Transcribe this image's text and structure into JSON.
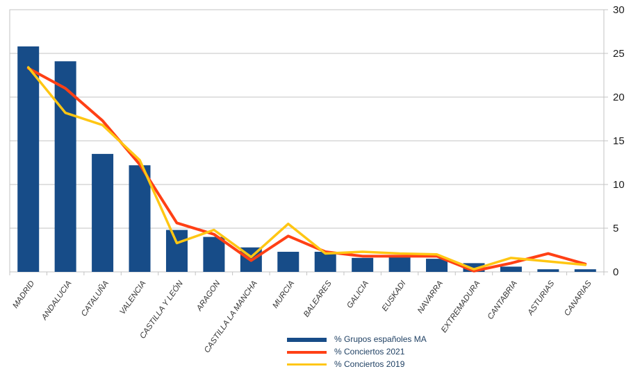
{
  "chart_data": {
    "type": "bar",
    "title": "",
    "xlabel": "",
    "ylabel": "",
    "ylim": [
      0,
      30
    ],
    "yticks": [
      0,
      5,
      10,
      15,
      20,
      25,
      30
    ],
    "grid": "horizontal gridlines on, light gray",
    "y_axis_side": "right",
    "legend_position": "bottom",
    "categories": [
      "MADRID",
      "ANDALUCIA",
      "CATALUÑA",
      "VALENCIA",
      "CASTILLA Y LEÓN",
      "ARAGON",
      "CASTILLA LA MANCHA",
      "MURCIA",
      "BALEARES",
      "GALICIA",
      "EUSKADI",
      "NAVARRA",
      "EXTREMADURA",
      "CANTABRIA",
      "ASTURIAS",
      "CANARIAS"
    ],
    "series": [
      {
        "name": "% Grupos españoles MA",
        "type": "bar",
        "color": "#174C88",
        "values": [
          25.8,
          24.1,
          13.5,
          12.2,
          4.8,
          4.0,
          2.8,
          2.3,
          2.3,
          1.6,
          1.7,
          1.5,
          1.0,
          0.6,
          0.3,
          0.3
        ]
      },
      {
        "name": "% Conciertos 2021",
        "type": "line",
        "color": "#FF4015",
        "values": [
          23.3,
          21.0,
          17.3,
          12.3,
          5.6,
          4.3,
          1.3,
          4.1,
          2.3,
          1.8,
          1.8,
          1.8,
          0.1,
          1.0,
          2.1,
          0.9
        ]
      },
      {
        "name": "% Conciertos 2019",
        "type": "line",
        "color": "#FFC613",
        "values": [
          23.4,
          18.2,
          16.8,
          12.8,
          3.3,
          4.8,
          1.7,
          5.5,
          2.1,
          2.3,
          2.1,
          2.0,
          0.3,
          1.6,
          1.2,
          0.8
        ]
      }
    ],
    "colors": {
      "grid": "#C3C3C3",
      "axis_text": "#1a1a1a",
      "category_text": "#333333",
      "legend_text": "#1F4063",
      "background": "#ffffff"
    }
  }
}
